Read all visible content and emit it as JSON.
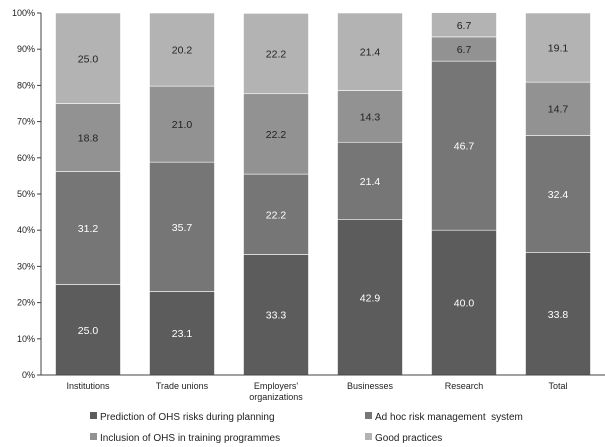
{
  "chart_data": {
    "type": "bar",
    "stacked": true,
    "normalized": true,
    "categories": [
      "Institutions",
      "Trade unions",
      "Employers' organizations",
      "Businesses",
      "Research",
      "Total"
    ],
    "category_lines": [
      [
        "Institutions"
      ],
      [
        "Trade unions"
      ],
      [
        "Employers'",
        "organizations"
      ],
      [
        "Businesses"
      ],
      [
        "Research"
      ],
      [
        "Total"
      ]
    ],
    "series": [
      {
        "name": "Prediction of OHS risks during planning",
        "color": "#5c5c5c",
        "label_color": "#ffffff",
        "values": [
          25.0,
          23.1,
          33.3,
          42.9,
          40.0,
          33.8
        ],
        "labels": [
          "25.0",
          "23.1",
          "33.3",
          "42.9",
          "40.0",
          "33.8"
        ]
      },
      {
        "name": "Ad hoc risk management  system",
        "color": "#767676",
        "label_color": "#ffffff",
        "values": [
          31.2,
          35.7,
          22.2,
          21.4,
          46.7,
          32.4
        ],
        "labels": [
          "31.2",
          "35.7",
          "22.2",
          "21.4",
          "46.7",
          "32.4"
        ]
      },
      {
        "name": "Inclusion of OHS in training programmes",
        "color": "#929292",
        "label_color": "#222222",
        "values": [
          18.8,
          21.0,
          22.2,
          14.3,
          6.7,
          14.7
        ],
        "labels": [
          "18.8",
          "21.0",
          "22.2",
          "14.3",
          "6.7",
          "14.7"
        ]
      },
      {
        "name": "Good practices",
        "color": "#b3b3b3",
        "label_color": "#222222",
        "values": [
          25.0,
          20.2,
          22.2,
          21.4,
          6.7,
          19.1
        ],
        "labels": [
          "25.0",
          "20.2",
          "22.2",
          "21.4",
          "6.7",
          "19.1"
        ]
      }
    ],
    "y_ticks": [
      0,
      10,
      20,
      30,
      40,
      50,
      60,
      70,
      80,
      90,
      100
    ],
    "y_tick_labels": [
      "0%",
      "10%",
      "20%",
      "30%",
      "40%",
      "50%",
      "60%",
      "70%",
      "80%",
      "90%",
      "100%"
    ],
    "ylim": [
      0,
      100
    ],
    "grid": false,
    "legend_position": "bottom"
  }
}
